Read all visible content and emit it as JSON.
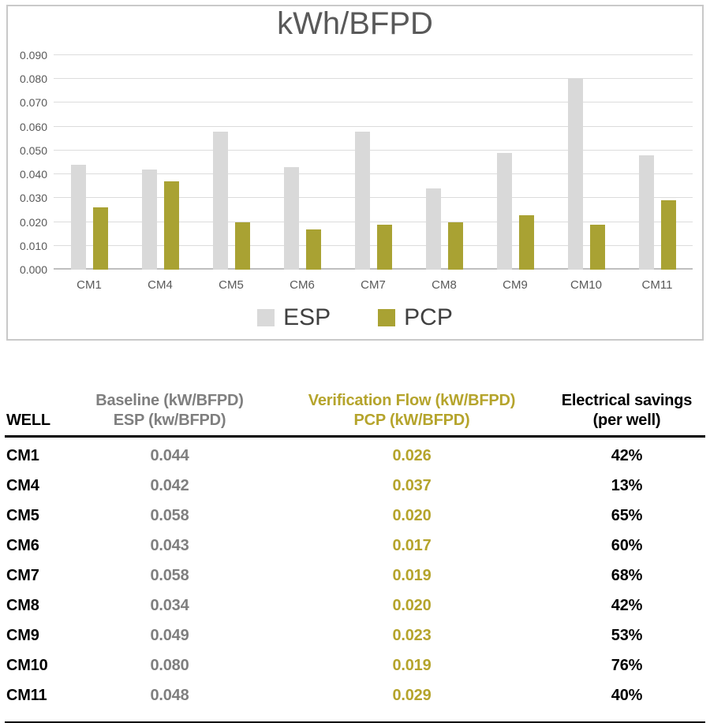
{
  "theme": {
    "esp-color": "#D9D9D9",
    "pcp-color": "#A9A233",
    "esp-text-color": "#7F7F7F",
    "pcp-text-color": "#B5A42C",
    "chart-text-color": "#595959",
    "legend-text-color": "#404040",
    "gridline-color": "#DCDCDC",
    "axis-line-color": "#BFBFBF",
    "panel-border-color": "#C9C9C9"
  },
  "chart_data": {
    "type": "bar",
    "title": "kWh/BFPD",
    "categories": [
      "CM1",
      "CM4",
      "CM5",
      "CM6",
      "CM7",
      "CM8",
      "CM9",
      "CM10",
      "CM11"
    ],
    "series": [
      {
        "name": "ESP",
        "color_key": "esp-color",
        "values": [
          0.044,
          0.042,
          0.058,
          0.043,
          0.058,
          0.034,
          0.049,
          0.08,
          0.048
        ]
      },
      {
        "name": "PCP",
        "color_key": "pcp-color",
        "values": [
          0.026,
          0.037,
          0.02,
          0.017,
          0.019,
          0.02,
          0.023,
          0.019,
          0.029
        ]
      }
    ],
    "ylim": [
      0,
      0.09
    ],
    "yticks": [
      "0.000",
      "0.010",
      "0.020",
      "0.030",
      "0.040",
      "0.050",
      "0.060",
      "0.070",
      "0.080",
      "0.090"
    ],
    "grid": true,
    "legend_position": "bottom",
    "legend": [
      "ESP",
      "PCP"
    ]
  },
  "table": {
    "headers": {
      "well": "WELL",
      "baseline_line1": "Baseline (kW/BFPD)",
      "baseline_line2": "ESP (kw/BFPD)",
      "verification_line1": "Verification Flow (kW/BFPD)",
      "verification_line2": "PCP (kW/BFPD)",
      "savings_line1": "Electrical savings",
      "savings_line2": "(per well)"
    },
    "rows": [
      {
        "well": "CM1",
        "esp": "0.044",
        "pcp": "0.026",
        "savings": "42%"
      },
      {
        "well": "CM4",
        "esp": "0.042",
        "pcp": "0.037",
        "savings": "13%"
      },
      {
        "well": "CM5",
        "esp": "0.058",
        "pcp": "0.020",
        "savings": "65%"
      },
      {
        "well": "CM6",
        "esp": "0.043",
        "pcp": "0.017",
        "savings": "60%"
      },
      {
        "well": "CM7",
        "esp": "0.058",
        "pcp": "0.019",
        "savings": "68%"
      },
      {
        "well": "CM8",
        "esp": "0.034",
        "pcp": "0.020",
        "savings": "42%"
      },
      {
        "well": "CM9",
        "esp": "0.049",
        "pcp": "0.023",
        "savings": "53%"
      },
      {
        "well": "CM10",
        "esp": "0.080",
        "pcp": "0.019",
        "savings": "76%"
      },
      {
        "well": "CM11",
        "esp": "0.048",
        "pcp": "0.029",
        "savings": "40%"
      }
    ]
  }
}
